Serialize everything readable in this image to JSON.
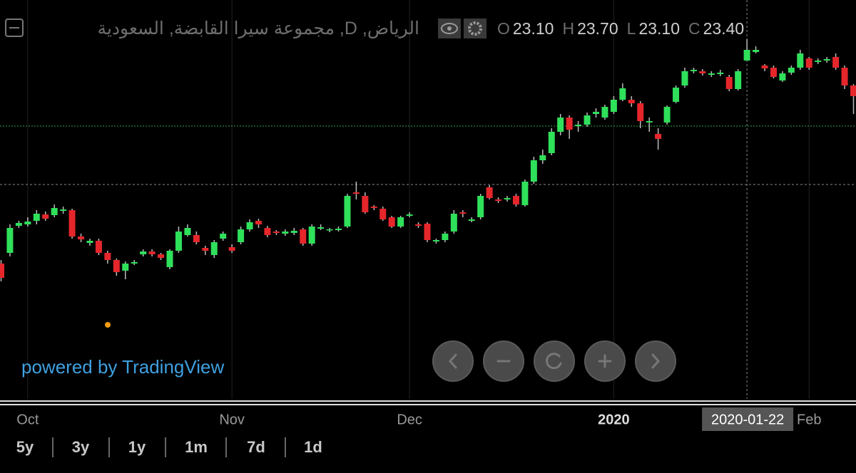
{
  "chart_data": {
    "type": "candlestick",
    "title": "الرياض, D, مجموعة سيرا القابضة, السعودية",
    "legend": [
      {
        "key": "O",
        "value": "23.10"
      },
      {
        "key": "H",
        "value": "23.70"
      },
      {
        "key": "L",
        "value": "23.10"
      },
      {
        "key": "C",
        "value": "23.40"
      }
    ],
    "up_color": "#2fe05a",
    "down_color": "#e5262b",
    "wick_color": "#bbbbbb",
    "xlim": [
      0,
      96
    ],
    "ylim": [
      13.6,
      24.8
    ],
    "xticks": [
      {
        "value": 3,
        "label": "Oct"
      },
      {
        "value": 26,
        "label": "Nov"
      },
      {
        "value": 46,
        "label": "Dec"
      },
      {
        "value": 69,
        "label": "2020"
      },
      {
        "value": 91,
        "label": "Feb"
      }
    ],
    "crosshair": {
      "value": 84,
      "label": "2020-01-22",
      "price": 19.62
    },
    "price_line": 21.26,
    "ohlc": [
      [
        17.4,
        17.5,
        16.9,
        17.0
      ],
      [
        17.7,
        18.5,
        17.6,
        18.4
      ],
      [
        18.46,
        18.6,
        18.4,
        18.54
      ],
      [
        18.5,
        18.7,
        18.44,
        18.58
      ],
      [
        18.6,
        18.9,
        18.5,
        18.8
      ],
      [
        18.78,
        18.86,
        18.6,
        18.66
      ],
      [
        18.76,
        19.06,
        18.7,
        18.96
      ],
      [
        18.88,
        19.0,
        18.8,
        18.92
      ],
      [
        18.9,
        18.94,
        18.1,
        18.16
      ],
      [
        18.16,
        18.24,
        18.0,
        18.08
      ],
      [
        17.98,
        18.1,
        17.9,
        18.04
      ],
      [
        18.04,
        18.1,
        17.64,
        17.7
      ],
      [
        17.7,
        17.76,
        17.4,
        17.5
      ],
      [
        17.5,
        17.54,
        17.06,
        17.16
      ],
      [
        17.2,
        17.46,
        16.96,
        17.4
      ],
      [
        17.4,
        17.5,
        17.36,
        17.44
      ],
      [
        17.66,
        17.8,
        17.6,
        17.74
      ],
      [
        17.74,
        17.8,
        17.6,
        17.66
      ],
      [
        17.66,
        17.7,
        17.5,
        17.56
      ],
      [
        17.3,
        17.8,
        17.24,
        17.76
      ],
      [
        17.76,
        18.44,
        17.7,
        18.3
      ],
      [
        18.2,
        18.5,
        18.16,
        18.4
      ],
      [
        18.2,
        18.3,
        17.94,
        18.0
      ],
      [
        17.84,
        17.9,
        17.64,
        17.76
      ],
      [
        17.64,
        18.06,
        17.56,
        18.0
      ],
      [
        18.1,
        18.3,
        18.04,
        18.24
      ],
      [
        17.86,
        17.94,
        17.7,
        17.76
      ],
      [
        18.0,
        18.44,
        17.94,
        18.36
      ],
      [
        18.36,
        18.64,
        18.3,
        18.56
      ],
      [
        18.6,
        18.66,
        18.4,
        18.5
      ],
      [
        18.4,
        18.46,
        18.14,
        18.2
      ],
      [
        18.3,
        18.34,
        18.2,
        18.26
      ],
      [
        18.24,
        18.36,
        18.18,
        18.3
      ],
      [
        18.26,
        18.4,
        18.2,
        18.32
      ],
      [
        18.36,
        18.4,
        17.9,
        17.96
      ],
      [
        17.96,
        18.5,
        17.9,
        18.44
      ],
      [
        18.38,
        18.5,
        18.34,
        18.42
      ],
      [
        18.34,
        18.4,
        18.28,
        18.36
      ],
      [
        18.34,
        18.44,
        18.3,
        18.38
      ],
      [
        18.44,
        19.36,
        18.4,
        19.3
      ],
      [
        19.4,
        19.7,
        19.2,
        19.36
      ],
      [
        19.3,
        19.4,
        18.8,
        18.84
      ],
      [
        19.0,
        19.04,
        18.9,
        18.96
      ],
      [
        18.94,
        19.0,
        18.6,
        18.64
      ],
      [
        18.7,
        18.74,
        18.4,
        18.44
      ],
      [
        18.44,
        18.74,
        18.4,
        18.7
      ],
      [
        18.74,
        18.84,
        18.7,
        18.78
      ],
      [
        18.5,
        18.56,
        18.4,
        18.46
      ],
      [
        18.52,
        18.56,
        18.0,
        18.06
      ],
      [
        18.02,
        18.1,
        17.96,
        18.06
      ],
      [
        18.06,
        18.3,
        18.0,
        18.24
      ],
      [
        18.3,
        18.9,
        18.24,
        18.8
      ],
      [
        18.84,
        18.9,
        18.7,
        18.8
      ],
      [
        18.6,
        18.7,
        18.56,
        18.64
      ],
      [
        18.7,
        19.36,
        18.64,
        19.3
      ],
      [
        19.54,
        19.6,
        19.2,
        19.24
      ],
      [
        19.2,
        19.26,
        19.1,
        19.16
      ],
      [
        19.2,
        19.3,
        19.14,
        19.24
      ],
      [
        19.3,
        19.36,
        19.0,
        19.06
      ],
      [
        19.04,
        19.76,
        19.0,
        19.7
      ],
      [
        19.7,
        20.4,
        19.64,
        20.3
      ],
      [
        20.3,
        20.6,
        20.2,
        20.44
      ],
      [
        20.5,
        21.2,
        20.44,
        21.1
      ],
      [
        21.1,
        21.6,
        21.0,
        21.5
      ],
      [
        21.5,
        21.56,
        20.9,
        21.16
      ],
      [
        21.26,
        21.4,
        21.1,
        21.3
      ],
      [
        21.3,
        21.64,
        21.24,
        21.56
      ],
      [
        21.6,
        21.76,
        21.5,
        21.66
      ],
      [
        21.5,
        21.86,
        21.44,
        21.8
      ],
      [
        21.66,
        22.1,
        21.6,
        22.0
      ],
      [
        22.0,
        22.46,
        21.96,
        22.32
      ],
      [
        22.0,
        22.1,
        21.8,
        21.9
      ],
      [
        21.9,
        21.96,
        21.2,
        21.4
      ],
      [
        21.36,
        21.5,
        21.1,
        21.4
      ],
      [
        21.04,
        21.2,
        20.6,
        20.9
      ],
      [
        21.36,
        21.84,
        21.3,
        21.8
      ],
      [
        21.94,
        22.4,
        21.9,
        22.34
      ],
      [
        22.4,
        22.9,
        22.34,
        22.8
      ],
      [
        22.8,
        22.9,
        22.74,
        22.84
      ],
      [
        22.8,
        22.86,
        22.68,
        22.74
      ],
      [
        22.7,
        22.8,
        22.64,
        22.74
      ],
      [
        22.72,
        22.84,
        22.66,
        22.76
      ],
      [
        22.64,
        22.7,
        22.24,
        22.3
      ],
      [
        22.3,
        22.86,
        22.26,
        22.8
      ],
      [
        23.1,
        23.7,
        23.1,
        23.4
      ],
      [
        23.34,
        23.5,
        23.3,
        23.4
      ],
      [
        22.96,
        23.0,
        22.8,
        22.88
      ],
      [
        22.9,
        22.96,
        22.6,
        22.64
      ],
      [
        22.54,
        22.8,
        22.5,
        22.74
      ],
      [
        22.76,
        22.96,
        22.7,
        22.9
      ],
      [
        22.9,
        23.4,
        22.84,
        23.3
      ],
      [
        23.16,
        23.2,
        22.84,
        22.9
      ],
      [
        23.06,
        23.16,
        23.0,
        23.1
      ],
      [
        23.1,
        23.2,
        23.04,
        23.14
      ],
      [
        23.2,
        23.3,
        22.84,
        22.9
      ],
      [
        22.9,
        22.96,
        22.3,
        22.4
      ],
      [
        22.4,
        22.44,
        21.6,
        22.1
      ]
    ]
  },
  "branding": "powered by TradingView",
  "ranges": [
    "5y",
    "3y",
    "1y",
    "1m",
    "7d",
    "1d"
  ]
}
